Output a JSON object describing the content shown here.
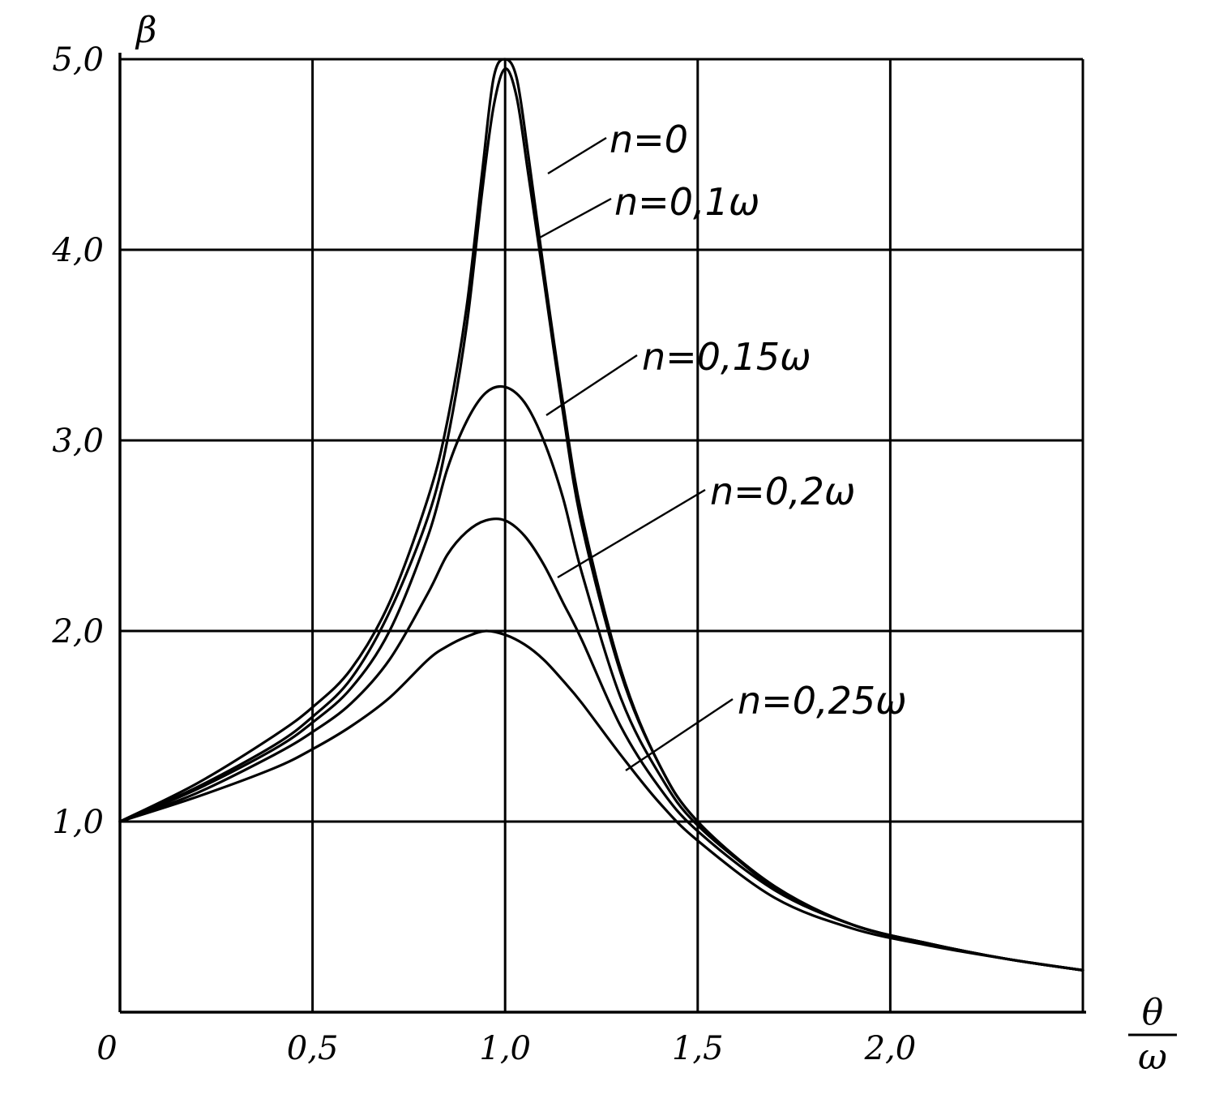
{
  "chart_data": {
    "type": "line",
    "xlabel_num": "θ",
    "xlabel_den": "ω",
    "ylabel": "β",
    "x_ticks": [
      {
        "v": 0,
        "label": "0"
      },
      {
        "v": 0.5,
        "label": "0,5"
      },
      {
        "v": 1.0,
        "label": "1,0"
      },
      {
        "v": 1.5,
        "label": "1,5"
      },
      {
        "v": 2.0,
        "label": "2,0"
      }
    ],
    "y_ticks": [
      {
        "v": 1.0,
        "label": "1,0"
      },
      {
        "v": 2.0,
        "label": "2,0"
      },
      {
        "v": 3.0,
        "label": "3,0"
      },
      {
        "v": 4.0,
        "label": "4,0"
      },
      {
        "v": 5.0,
        "label": "5,0"
      }
    ],
    "xlim": [
      0,
      2.5
    ],
    "ylim": [
      0,
      5.0
    ],
    "grid": true,
    "series": [
      {
        "name": "n=0",
        "x": [
          0,
          0.2,
          0.4,
          0.5,
          0.6,
          0.7,
          0.8,
          0.85,
          0.9,
          0.94,
          0.97,
          1.0,
          1.03,
          1.06,
          1.1,
          1.15,
          1.2,
          1.3,
          1.4,
          1.5,
          1.7,
          1.9,
          2.1,
          2.3,
          2.5
        ],
        "y": [
          1.0,
          1.2,
          1.45,
          1.6,
          1.8,
          2.15,
          2.7,
          3.1,
          3.7,
          4.4,
          4.9,
          5.0,
          4.9,
          4.5,
          3.9,
          3.2,
          2.6,
          1.8,
          1.3,
          1.0,
          0.65,
          0.46,
          0.36,
          0.28,
          0.22
        ]
      },
      {
        "name": "n=0,1ω",
        "x": [
          0,
          0.2,
          0.4,
          0.5,
          0.6,
          0.7,
          0.8,
          0.85,
          0.9,
          0.94,
          0.97,
          1.0,
          1.03,
          1.06,
          1.1,
          1.15,
          1.2,
          1.3,
          1.4,
          1.5,
          1.7,
          1.9,
          2.1,
          2.3,
          2.5
        ],
        "y": [
          1.0,
          1.18,
          1.4,
          1.55,
          1.75,
          2.1,
          2.6,
          3.0,
          3.6,
          4.3,
          4.75,
          4.95,
          4.8,
          4.4,
          3.85,
          3.15,
          2.55,
          1.78,
          1.3,
          1.0,
          0.66,
          0.46,
          0.36,
          0.28,
          0.22
        ]
      },
      {
        "name": "n=0,15ω",
        "x": [
          0,
          0.2,
          0.4,
          0.5,
          0.6,
          0.7,
          0.8,
          0.85,
          0.9,
          0.95,
          1.0,
          1.05,
          1.1,
          1.15,
          1.2,
          1.3,
          1.4,
          1.5,
          1.7,
          1.9,
          2.1,
          2.3,
          2.5
        ],
        "y": [
          1.0,
          1.17,
          1.38,
          1.52,
          1.7,
          2.0,
          2.5,
          2.85,
          3.1,
          3.25,
          3.28,
          3.2,
          3.0,
          2.7,
          2.3,
          1.65,
          1.25,
          0.98,
          0.66,
          0.46,
          0.36,
          0.28,
          0.22
        ]
      },
      {
        "name": "n=0,2ω",
        "x": [
          0,
          0.2,
          0.4,
          0.5,
          0.6,
          0.7,
          0.8,
          0.85,
          0.9,
          0.95,
          1.0,
          1.05,
          1.1,
          1.15,
          1.2,
          1.3,
          1.4,
          1.5,
          1.7,
          1.9,
          2.1,
          2.3,
          2.5
        ],
        "y": [
          1.0,
          1.15,
          1.35,
          1.47,
          1.62,
          1.85,
          2.2,
          2.4,
          2.52,
          2.58,
          2.58,
          2.5,
          2.35,
          2.15,
          1.95,
          1.5,
          1.18,
          0.95,
          0.64,
          0.46,
          0.36,
          0.28,
          0.22
        ]
      },
      {
        "name": "n=0,25ω",
        "x": [
          0,
          0.2,
          0.4,
          0.5,
          0.6,
          0.7,
          0.8,
          0.85,
          0.9,
          0.95,
          1.0,
          1.05,
          1.1,
          1.15,
          1.2,
          1.3,
          1.4,
          1.5,
          1.7,
          1.9,
          2.1,
          2.3,
          2.5
        ],
        "y": [
          1.0,
          1.13,
          1.28,
          1.38,
          1.5,
          1.65,
          1.85,
          1.92,
          1.97,
          2.0,
          1.98,
          1.93,
          1.85,
          1.74,
          1.62,
          1.35,
          1.1,
          0.9,
          0.6,
          0.44,
          0.35,
          0.28,
          0.22
        ]
      }
    ]
  }
}
